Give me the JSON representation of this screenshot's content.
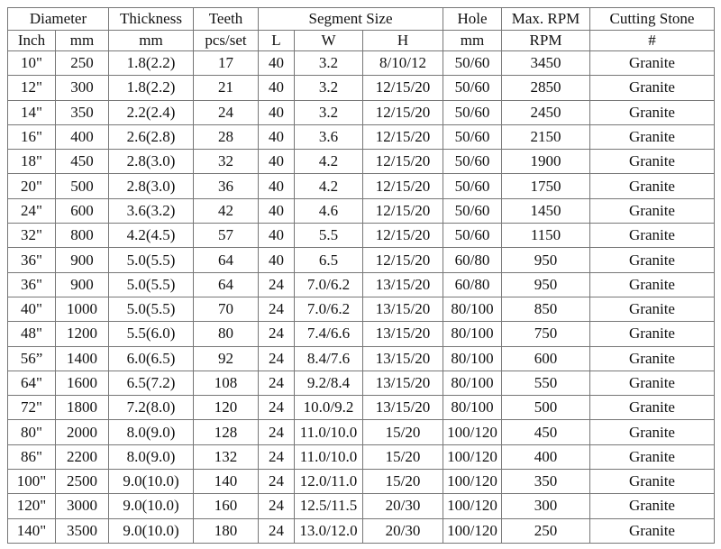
{
  "header": {
    "groups": {
      "diameter": "Diameter",
      "thickness": "Thickness",
      "teeth": "Teeth",
      "segment_size": "Segment Size",
      "hole": "Hole",
      "max_rpm": "Max. RPM",
      "cutting_stone": "Cutting Stone"
    },
    "units": [
      "Inch",
      "mm",
      "mm",
      "pcs/set",
      "L",
      "W",
      "H",
      "mm",
      "RPM",
      "#"
    ]
  },
  "rows": [
    [
      "10\"",
      "250",
      "1.8(2.2)",
      "17",
      "40",
      "3.2",
      "8/10/12",
      "50/60",
      "3450",
      "Granite"
    ],
    [
      "12\"",
      "300",
      "1.8(2.2)",
      "21",
      "40",
      "3.2",
      "12/15/20",
      "50/60",
      "2850",
      "Granite"
    ],
    [
      "14\"",
      "350",
      "2.2(2.4)",
      "24",
      "40",
      "3.2",
      "12/15/20",
      "50/60",
      "2450",
      "Granite"
    ],
    [
      "16\"",
      "400",
      "2.6(2.8)",
      "28",
      "40",
      "3.6",
      "12/15/20",
      "50/60",
      "2150",
      "Granite"
    ],
    [
      "18\"",
      "450",
      "2.8(3.0)",
      "32",
      "40",
      "4.2",
      "12/15/20",
      "50/60",
      "1900",
      "Granite"
    ],
    [
      "20\"",
      "500",
      "2.8(3.0)",
      "36",
      "40",
      "4.2",
      "12/15/20",
      "50/60",
      "1750",
      "Granite"
    ],
    [
      "24\"",
      "600",
      "3.6(3.2)",
      "42",
      "40",
      "4.6",
      "12/15/20",
      "50/60",
      "1450",
      "Granite"
    ],
    [
      "32\"",
      "800",
      "4.2(4.5)",
      "57",
      "40",
      "5.5",
      "12/15/20",
      "50/60",
      "1150",
      "Granite"
    ],
    [
      "36\"",
      "900",
      "5.0(5.5)",
      "64",
      "40",
      "6.5",
      "12/15/20",
      "60/80",
      "950",
      "Granite"
    ],
    [
      "36\"",
      "900",
      "5.0(5.5)",
      "64",
      "24",
      "7.0/6.2",
      "13/15/20",
      "60/80",
      "950",
      "Granite"
    ],
    [
      "40\"",
      "1000",
      "5.0(5.5)",
      "70",
      "24",
      "7.0/6.2",
      "13/15/20",
      "80/100",
      "850",
      "Granite"
    ],
    [
      "48\"",
      "1200",
      "5.5(6.0)",
      "80",
      "24",
      "7.4/6.6",
      "13/15/20",
      "80/100",
      "750",
      "Granite"
    ],
    [
      "56”",
      "1400",
      "6.0(6.5)",
      "92",
      "24",
      "8.4/7.6",
      "13/15/20",
      "80/100",
      "600",
      "Granite"
    ],
    [
      "64\"",
      "1600",
      "6.5(7.2)",
      "108",
      "24",
      "9.2/8.4",
      "13/15/20",
      "80/100",
      "550",
      "Granite"
    ],
    [
      "72\"",
      "1800",
      "7.2(8.0)",
      "120",
      "24",
      "10.0/9.2",
      "13/15/20",
      "80/100",
      "500",
      "Granite"
    ],
    [
      "80\"",
      "2000",
      "8.0(9.0)",
      "128",
      "24",
      "11.0/10.0",
      "15/20",
      "100/120",
      "450",
      "Granite"
    ],
    [
      "86\"",
      "2200",
      "8.0(9.0)",
      "132",
      "24",
      "11.0/10.0",
      "15/20",
      "100/120",
      "400",
      "Granite"
    ],
    [
      "100\"",
      "2500",
      "9.0(10.0)",
      "140",
      "24",
      "12.0/11.0",
      "15/20",
      "100/120",
      "350",
      "Granite"
    ],
    [
      "120\"",
      "3000",
      "9.0(10.0)",
      "160",
      "24",
      "12.5/11.5",
      "20/30",
      "100/120",
      "300",
      "Granite"
    ],
    [
      "140\"",
      "3500",
      "9.0(10.0)",
      "180",
      "24",
      "13.0/12.0",
      "20/30",
      "100/120",
      "250",
      "Granite"
    ]
  ]
}
